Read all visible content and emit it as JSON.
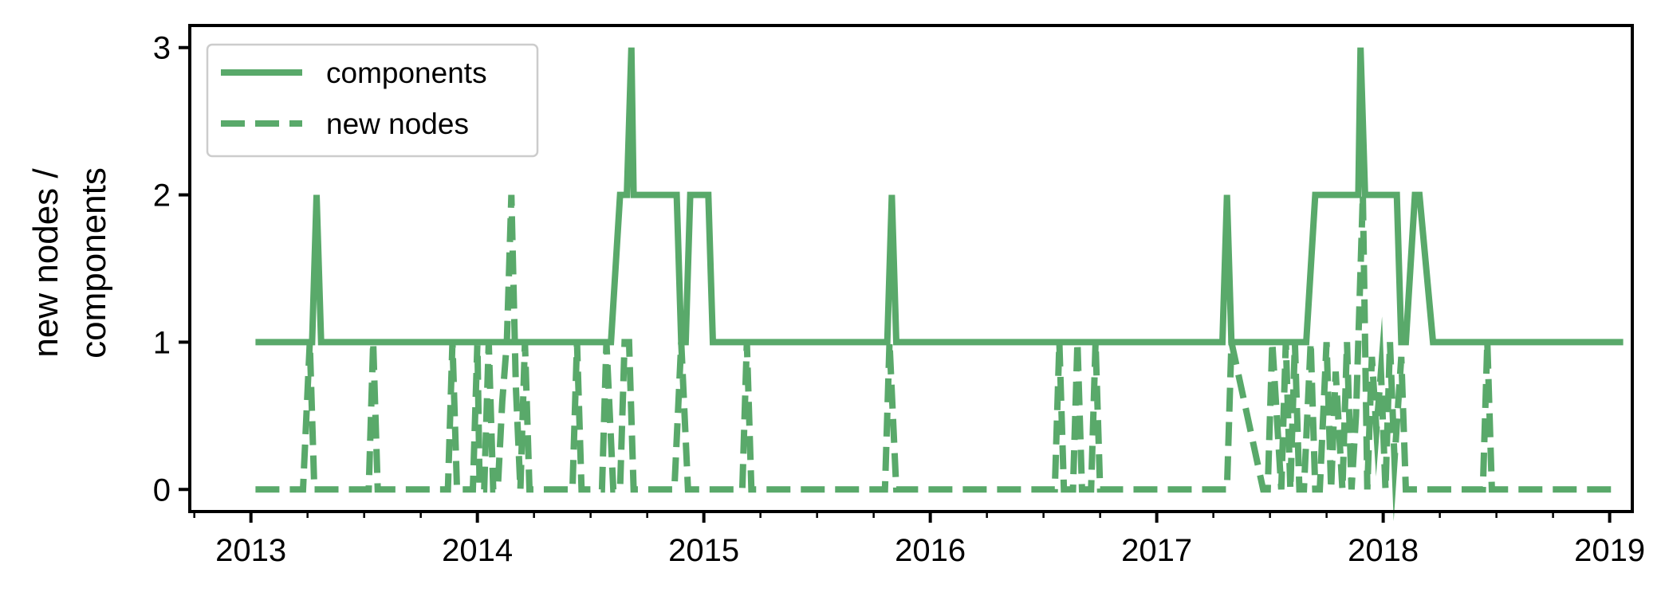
{
  "chart_data": {
    "type": "line",
    "title": "",
    "xlabel": "",
    "ylabel_lines": [
      "new nodes /",
      "components"
    ],
    "xlim": [
      2012.73,
      2019.1
    ],
    "ylim": [
      -0.15,
      3.15
    ],
    "xticks": [
      2013,
      2014,
      2015,
      2016,
      2017,
      2018,
      2019
    ],
    "xtick_labels": [
      "2013",
      "2014",
      "2015",
      "2016",
      "2017",
      "2018",
      "2019"
    ],
    "yticks": [
      0,
      1,
      2,
      3
    ],
    "ytick_labels": [
      "0",
      "1",
      "2",
      "3"
    ],
    "grid": false,
    "legend": "top-left",
    "color": "#59a96a",
    "series": [
      {
        "name": "components",
        "style": "solid",
        "x": [
          2013.02,
          2013.27,
          2013.29,
          2013.31,
          2014.57,
          2014.59,
          2014.63,
          2014.66,
          2014.68,
          2014.69,
          2014.71,
          2014.88,
          2014.9,
          2014.92,
          2014.94,
          2015.02,
          2015.04,
          2015.1,
          2015.12,
          2015.81,
          2015.83,
          2015.85,
          2017.29,
          2017.31,
          2017.33,
          2017.64,
          2017.66,
          2017.7,
          2017.89,
          2017.9,
          2017.92,
          2018.06,
          2018.08,
          2018.1,
          2018.14,
          2018.16,
          2018.22,
          2018.24,
          2019.06
        ],
        "y": [
          1,
          1,
          2,
          1,
          1,
          1,
          2,
          2,
          3,
          2,
          2,
          2,
          1,
          1,
          2,
          2,
          1,
          1,
          1,
          1,
          2,
          1,
          1,
          2,
          1,
          1,
          1,
          2,
          2,
          3,
          2,
          2,
          1,
          1,
          2,
          2,
          1,
          1,
          1
        ]
      },
      {
        "name": "new nodes",
        "style": "dashed",
        "x": [
          2013.02,
          2013.23,
          2013.26,
          2013.28,
          2013.31,
          2013.52,
          2013.54,
          2013.56,
          2013.87,
          2013.89,
          2013.91,
          2013.98,
          2014.0,
          2014.01,
          2014.03,
          2014.05,
          2014.07,
          2014.09,
          2014.11,
          2014.13,
          2014.15,
          2014.17,
          2014.19,
          2014.21,
          2014.23,
          2014.25,
          2014.42,
          2014.44,
          2014.46,
          2014.55,
          2014.57,
          2014.6,
          2014.63,
          2014.65,
          2014.67,
          2014.69,
          2014.73,
          2014.87,
          2014.9,
          2014.93,
          2015.17,
          2015.19,
          2015.21,
          2015.8,
          2015.82,
          2015.85,
          2016.55,
          2016.57,
          2016.59,
          2016.63,
          2016.65,
          2016.67,
          2016.71,
          2016.73,
          2016.75,
          2017.29,
          2017.31,
          2017.33,
          2017.47,
          2017.49,
          2017.51,
          2017.55,
          2017.57,
          2017.59,
          2017.61,
          2017.63,
          2017.65,
          2017.68,
          2017.7,
          2017.72,
          2017.75,
          2017.77,
          2017.79,
          2017.82,
          2017.84,
          2017.86,
          2017.88,
          2017.91,
          2017.93,
          2017.95,
          2017.97,
          2017.99,
          2018.01,
          2018.03,
          2018.05,
          2018.08,
          2018.1,
          2018.12,
          2018.14,
          2018.44,
          2018.46,
          2018.48,
          2019.03
        ],
        "y": [
          0,
          0,
          1,
          0,
          0,
          0,
          1,
          0,
          0,
          1,
          0,
          0,
          1,
          0,
          0,
          1,
          0,
          0,
          0.6,
          1,
          2,
          0.7,
          0,
          1,
          0,
          0,
          0,
          1,
          0,
          0,
          1,
          0,
          0,
          1,
          1,
          0,
          0,
          0,
          1,
          0,
          0,
          1,
          0,
          0,
          1,
          0,
          0,
          1,
          0,
          0,
          1,
          0,
          0,
          1,
          0,
          0,
          0,
          1,
          0,
          0,
          1,
          0,
          1,
          0,
          1,
          0,
          0,
          1,
          0,
          0,
          1,
          0,
          0.8,
          0,
          1,
          0,
          0.5,
          2,
          0,
          0.9,
          0.4,
          0.8,
          0,
          1,
          0.2,
          0.9,
          0,
          0,
          0,
          0,
          1,
          0,
          0
        ]
      }
    ]
  }
}
